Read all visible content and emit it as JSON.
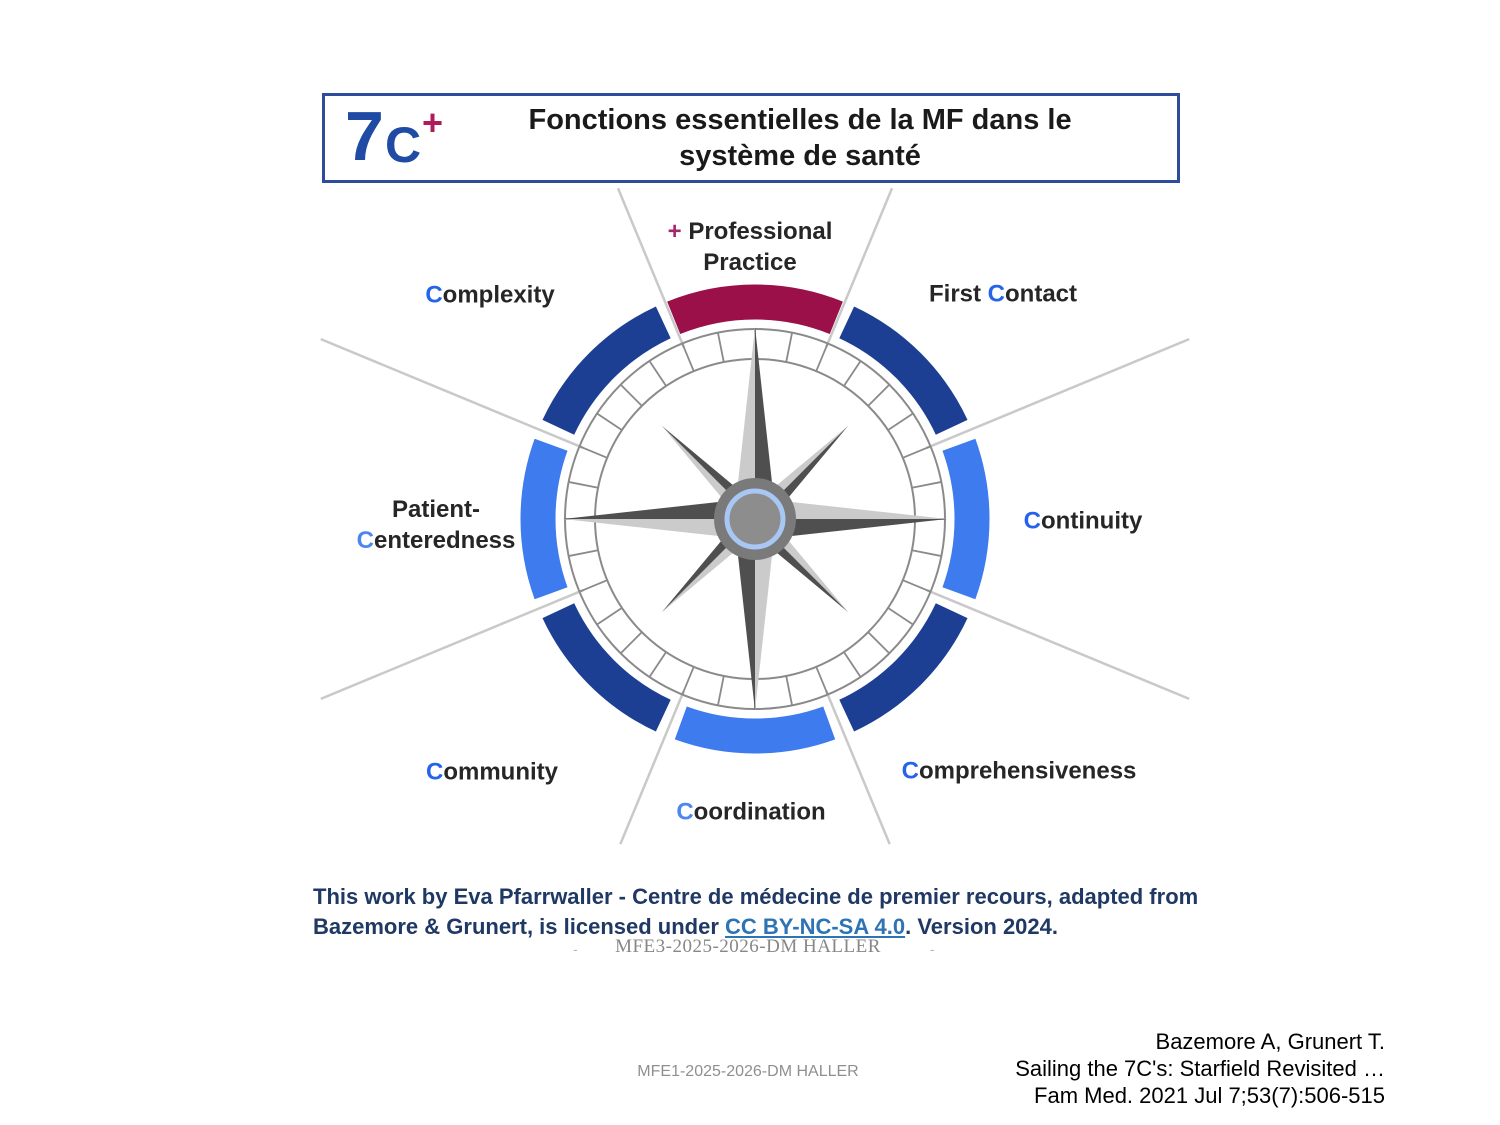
{
  "colors": {
    "title_border": "#2E4C9B",
    "logo_blue": "#1F4BA5",
    "logo_plus_crimson": "#B01A5B",
    "label_plus_crimson": "#A3286B",
    "lead_blue": "#2563EB",
    "lead_light_blue": "#4D86F0",
    "arc_navy": "#1C3F94",
    "arc_bright_blue": "#3D7BEE",
    "arc_crimson": "#9B1048",
    "divider_gray": "#C9C9C9",
    "dial_gray": "#8A8A8A",
    "star_dark": "#4F4F4F",
    "star_light": "#CBCBCB",
    "hub_gray": "#7A7A7A",
    "hub_inner_gray": "#8D8D8D",
    "hub_ring_blue": "#A9C7F4",
    "license_navy": "#1F3864",
    "link_blue": "#2E74B5"
  },
  "header": {
    "logo_7": "7",
    "logo_c": "C",
    "logo_plus": "+",
    "title_line1": "Fonctions essentielles de la MF dans le",
    "title_line2": "système de santé"
  },
  "compass": {
    "ring_segments": [
      {
        "label": "Professional Practice",
        "color": "#9B1048"
      },
      {
        "label": "First Contact",
        "color": "#1C3F94"
      },
      {
        "label": "Continuity",
        "color": "#3D7BEE"
      },
      {
        "label": "Comprehensiveness",
        "color": "#1C3F94"
      },
      {
        "label": "Coordination",
        "color": "#3D7BEE"
      },
      {
        "label": "Community",
        "color": "#1C3F94"
      },
      {
        "label": "Patient-Centeredness",
        "color": "#3D7BEE"
      },
      {
        "label": "Complexity",
        "color": "#1C3F94"
      }
    ]
  },
  "labels": {
    "professional_practice": {
      "plus": "+",
      "line1": "Professional",
      "line2": "Practice"
    },
    "complexity": {
      "lead": "C",
      "rest": "omplexity"
    },
    "first_contact": {
      "pre": "First ",
      "lead": "C",
      "rest": "ontact"
    },
    "continuity": {
      "lead": "C",
      "rest": "ontinuity"
    },
    "patient_centeredness": {
      "line1": "Patient-",
      "lead": "C",
      "rest": "enteredness"
    },
    "community": {
      "lead": "C",
      "rest": "ommunity"
    },
    "coordination": {
      "lead": "C",
      "rest": "oordination"
    },
    "comprehensiveness": {
      "lead": "C",
      "rest": "omprehensiveness"
    }
  },
  "footer": {
    "license_line1": "This work by Eva Pfarrwaller - Centre de médecine de premier recours, adapted from",
    "license_line2_pre": "Bazemore & Grunert, is licensed under ",
    "license_link": "CC BY-NC-SA 4.0",
    "license_line2_post": ". Version 2024.",
    "watermark_mfe3": "MFE3-2025-2026-DM HALLER",
    "dash_left": "-",
    "dash_right": "-",
    "watermark_mfe1": "MFE1-2025-2026-DM HALLER",
    "citation_line1": "Bazemore A, Grunert T.",
    "citation_line2": "Sailing the 7C's: Starfield Revisited …",
    "citation_line3": "Fam Med. 2021 Jul 7;53(7):506-515"
  }
}
